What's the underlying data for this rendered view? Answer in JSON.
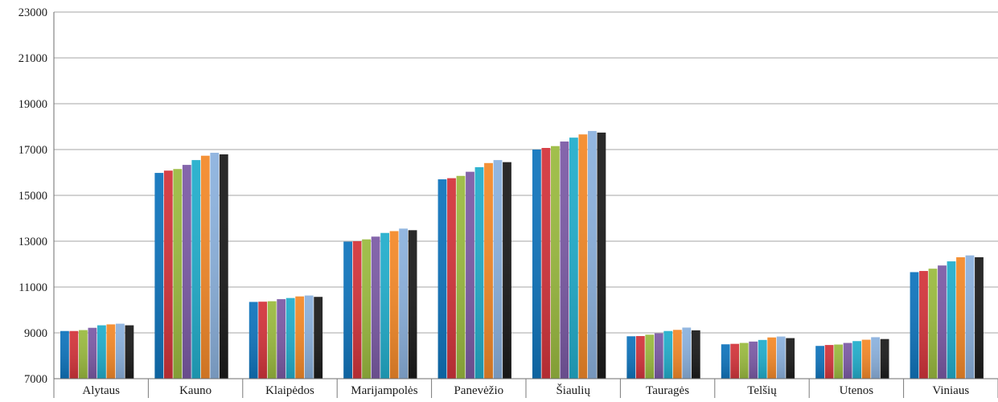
{
  "chart_data": {
    "type": "bar",
    "categories": [
      "Alytaus",
      "Kauno",
      "Klaipėdos",
      "Marijampolės",
      "Panevėžio",
      "Šiaulių",
      "Tauragės",
      "Telšių",
      "Utenos",
      "Viniaus"
    ],
    "series": [
      {
        "color": "#1075bd",
        "values": [
          9080,
          15980,
          10350,
          12980,
          15700,
          17000,
          8850,
          8500,
          8430,
          11650
        ]
      },
      {
        "color": "#d3353c",
        "values": [
          9080,
          16080,
          10360,
          13000,
          15750,
          17070,
          8860,
          8520,
          8470,
          11700
        ]
      },
      {
        "color": "#9bbb40",
        "values": [
          9120,
          16150,
          10380,
          13080,
          15850,
          17150,
          8920,
          8560,
          8490,
          11800
        ]
      },
      {
        "color": "#7c5ba6",
        "values": [
          9220,
          16330,
          10470,
          13200,
          16030,
          17350,
          8980,
          8620,
          8560,
          11940
        ]
      },
      {
        "color": "#23aecc",
        "values": [
          9330,
          16540,
          10520,
          13360,
          16230,
          17520,
          9080,
          8690,
          8640,
          12120
        ]
      },
      {
        "color": "#f48a2a",
        "values": [
          9370,
          16730,
          10590,
          13440,
          16410,
          17660,
          9130,
          8800,
          8700,
          12300
        ]
      },
      {
        "color": "#8cb2de",
        "values": [
          9400,
          16860,
          10630,
          13550,
          16540,
          17810,
          9230,
          8840,
          8810,
          12380
        ]
      },
      {
        "color": "#1c1c1c",
        "values": [
          9330,
          16790,
          10570,
          13480,
          16450,
          17740,
          9110,
          8770,
          8730,
          12300
        ]
      }
    ],
    "y_ticks": [
      "7000",
      "9000",
      "11000",
      "13000",
      "15000",
      "17000",
      "19000",
      "21000",
      "23000"
    ],
    "ylim": [
      7000,
      23000
    ],
    "grid": "horizontal",
    "legend": "none"
  }
}
